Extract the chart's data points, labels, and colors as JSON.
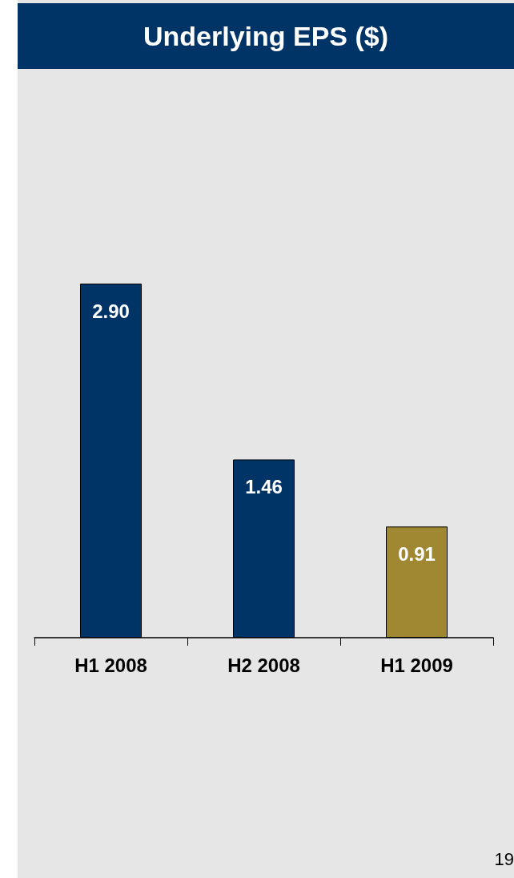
{
  "chart_data": {
    "type": "bar",
    "title": "Underlying EPS ($)",
    "categories": [
      "H1 2008",
      "H2 2008",
      "H1 2009"
    ],
    "values": [
      2.9,
      1.46,
      0.91
    ],
    "value_labels": [
      "2.90",
      "1.46",
      "0.91"
    ],
    "colors": [
      "#003366",
      "#003366",
      "#a08832"
    ],
    "annotations": [
      "19"
    ]
  }
}
